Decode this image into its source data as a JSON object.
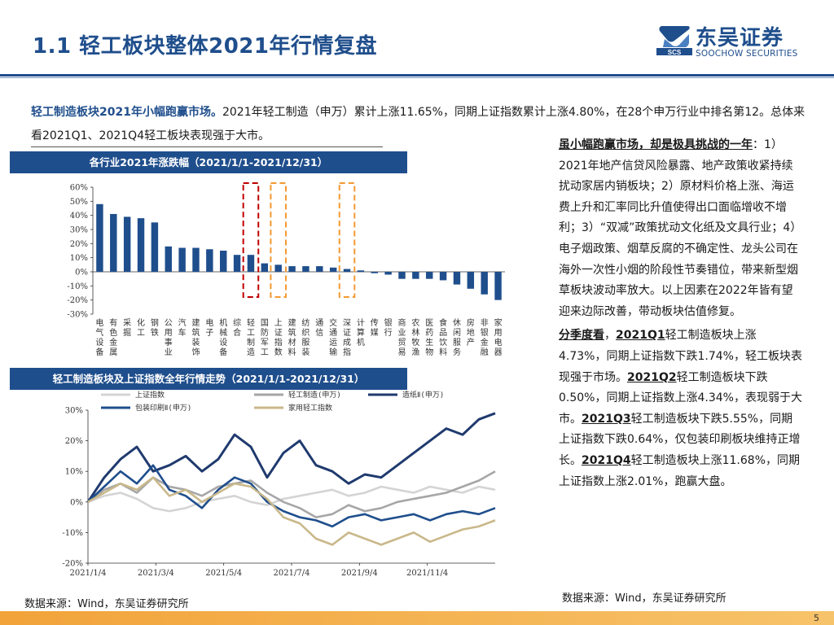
{
  "title": "1.1 轻工板块整体2021年行情复盘",
  "logo": {
    "cn": "东吴证券",
    "en": "SOOCHOW SECURITIES",
    "mark_text": "SCS"
  },
  "intro": {
    "bold": "轻工制造板块2021年小幅跑赢市场。",
    "text": "2021年轻工制造（申万）累计上涨11.65%，同期上证指数累计上涨4.80%，在28个申万行业中排名第12。总体来看2021Q1、2021Q4轻工板块表现强于大市。"
  },
  "chart_data": [
    {
      "type": "bar",
      "title": "各行业2021年涨跌幅（2021/1/1-2021/12/31）",
      "categories": [
        "电气设备",
        "有色金属",
        "采掘",
        "化工",
        "钢铁",
        "公用事业",
        "汽车",
        "建筑装饰",
        "电子",
        "机械设备",
        "综合",
        "轻工制造",
        "国防军工",
        "上证指数",
        "建筑材料",
        "纺织服装",
        "通信",
        "交通运输",
        "深证成指",
        "计算机",
        "传媒",
        "银行",
        "商业贸易",
        "农林牧渔",
        "医药生物",
        "食品饮料",
        "休闲服务",
        "房地产",
        "非银金融",
        "家用电器"
      ],
      "values": [
        48,
        41,
        39,
        38,
        35,
        18,
        17,
        17,
        16,
        15,
        12,
        12,
        6,
        5,
        4,
        4,
        4,
        3,
        2,
        1,
        -1,
        -2,
        -5,
        -5,
        -5,
        -6,
        -9,
        -12,
        -16,
        -20
      ],
      "highlights": [
        {
          "category": "轻工制造",
          "color": "#c00000"
        },
        {
          "category": "上证指数",
          "color": "#f39a32"
        },
        {
          "category": "深证成指",
          "color": "#f39a32"
        }
      ],
      "ylim": [
        -30,
        60
      ],
      "yticks": [
        "60%",
        "50%",
        "40%",
        "30%",
        "20%",
        "10%",
        "0%",
        "-10%",
        "-20%",
        "-30%"
      ],
      "color": "#1f4e8c"
    },
    {
      "type": "line",
      "title": "轻工制造板块及上证指数全年行情走势（2021/1/1-2021/12/31）",
      "x_ticks": [
        "2021/1/4",
        "2021/3/4",
        "2021/5/4",
        "2021/7/4",
        "2021/9/4",
        "2021/11/4"
      ],
      "ylim": [
        -20,
        30
      ],
      "yticks": [
        "30%",
        "20%",
        "10%",
        "0%",
        "-10%",
        "-20%"
      ],
      "series": [
        {
          "name": "上证指数",
          "color": "#d4d4d4",
          "values": [
            0,
            2,
            3,
            1,
            -2,
            -3,
            -2,
            0,
            1,
            2,
            0,
            -1,
            1,
            2,
            3,
            4,
            2,
            3,
            5,
            4,
            3,
            5,
            4,
            3,
            5,
            4
          ]
        },
        {
          "name": "轻工制造(申万)",
          "color": "#a6a6a6",
          "values": [
            0,
            4,
            6,
            3,
            8,
            5,
            4,
            2,
            5,
            6,
            7,
            3,
            0,
            -2,
            -5,
            -4,
            -1,
            -3,
            -2,
            0,
            1,
            2,
            3,
            5,
            7,
            10
          ]
        },
        {
          "name": "造纸Ⅱ(申万)",
          "color": "#1f3a6e",
          "values": [
            0,
            8,
            14,
            18,
            10,
            12,
            15,
            10,
            14,
            22,
            18,
            8,
            16,
            20,
            12,
            10,
            6,
            9,
            8,
            12,
            16,
            20,
            24,
            22,
            27,
            29
          ]
        },
        {
          "name": "包装印刷Ⅱ(申万)",
          "color": "#1f4e8c",
          "values": [
            0,
            5,
            10,
            6,
            12,
            4,
            2,
            -2,
            4,
            8,
            6,
            0,
            -3,
            -5,
            -6,
            -8,
            -5,
            -4,
            -6,
            -5,
            -4,
            -6,
            -4,
            -3,
            -4,
            -2
          ]
        },
        {
          "name": "家用轻工指数",
          "color": "#c9b88a",
          "values": [
            0,
            3,
            6,
            4,
            8,
            2,
            4,
            0,
            3,
            6,
            5,
            1,
            -5,
            -7,
            -12,
            -14,
            -10,
            -12,
            -14,
            -12,
            -10,
            -13,
            -11,
            -9,
            -8,
            -6
          ]
        }
      ]
    }
  ],
  "side": {
    "p1_hl": "虽小幅跑赢市场，却是极具挑战的一年",
    "p1_text": "：1）2021年地产信贷风险暴露、地产政策收紧持续扰动家居内销板块；2）原材料价格上涨、海运费上升和汇率同比升值使得出口面临增收不增利；3）“双减”政策扰动文化纸及文具行业；4）电子烟政策、烟草反腐的不确定性、龙头公司在海外一次性小烟的阶段性节奏错位，带来新型烟草板块波动率放大。以上因素在2022年皆有望迎来边际改善，带动板块估值修复。",
    "p2_hl1": "分季度看",
    "p2_t1": "，",
    "p2_hl2": "2021Q1",
    "p2_t2": "轻工制造板块上涨4.73%，同期上证指数下跌1.74%，轻工板块表现强于市场。",
    "p2_hl3": "2021Q2",
    "p2_t3": "轻工制造板块下跌0.50%，同期上证指数上涨4.34%，表现弱于大市。",
    "p2_hl4": "2021Q3",
    "p2_t4": "轻工制造板块下跌5.55%，同期上证指数下跌0.64%，仅包装印刷板块维持正增长。",
    "p2_hl5": "2021Q4",
    "p2_t5": "轻工制造板块上涨11.68%，同期上证指数上涨2.01%，跑赢大盘。"
  },
  "source_left": "数据来源：Wind，东吴证券研究所",
  "source_right": "数据来源：Wind，东吴证券研究所",
  "page_number": "5"
}
